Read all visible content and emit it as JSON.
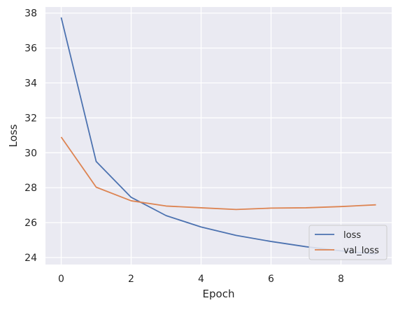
{
  "chart_data": {
    "type": "line",
    "title": "",
    "xlabel": "Epoch",
    "ylabel": "Loss",
    "xlim": [
      -0.45,
      9.45
    ],
    "ylim": [
      23.6,
      38.35
    ],
    "xticks": [
      0,
      2,
      4,
      6,
      8
    ],
    "yticks": [
      24,
      26,
      28,
      30,
      32,
      34,
      36,
      38
    ],
    "grid": true,
    "background": "#EAEAF2",
    "legend_position": "lower-right",
    "x": [
      0,
      1,
      2,
      3,
      4,
      5,
      6,
      7,
      8,
      9
    ],
    "series": [
      {
        "name": "loss",
        "color": "#4C72B0",
        "values": [
          37.75,
          29.5,
          27.45,
          26.4,
          25.75,
          25.27,
          24.92,
          24.62,
          24.38,
          24.2
        ]
      },
      {
        "name": "val_loss",
        "color": "#DD8452",
        "values": [
          30.9,
          28.03,
          27.25,
          26.95,
          26.85,
          26.75,
          26.83,
          26.85,
          26.92,
          27.02
        ]
      }
    ]
  }
}
